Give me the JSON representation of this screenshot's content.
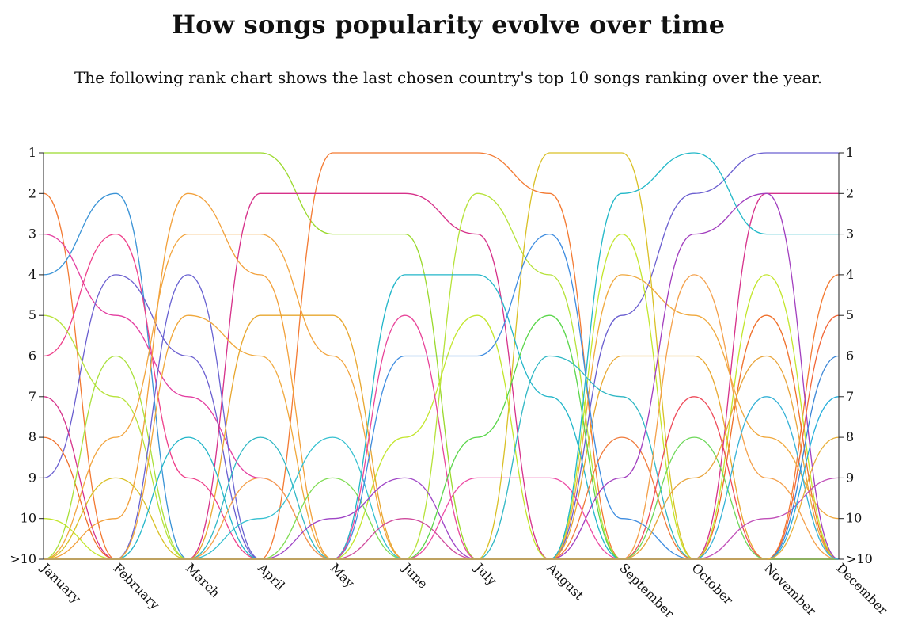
{
  "header": {
    "title": "How songs popularity evolve over time",
    "subtitle": "The following rank chart shows the last chosen country's top 10 songs ranking over the year."
  },
  "chart_data": {
    "type": "line",
    "title": "How songs popularity evolve over time",
    "x": [
      "January",
      "February",
      "March",
      "April",
      "May",
      "June",
      "July",
      "August",
      "September",
      "October",
      "November",
      "December"
    ],
    "y_ticks": [
      "1",
      "2",
      "3",
      "4",
      "5",
      "6",
      "7",
      "8",
      "9",
      "10",
      ">10"
    ],
    "y_direction": "rank (1 at top, >10 at bottom)",
    "off_chart_value": 11,
    "grid": false,
    "legend": "none",
    "series": [
      {
        "color": "#9ad92c",
        "values": [
          1,
          1,
          1,
          1,
          3,
          3,
          11,
          11,
          11,
          11,
          11,
          11
        ]
      },
      {
        "color": "#f37a32",
        "values": [
          2,
          11,
          11,
          11,
          1,
          1,
          1,
          2,
          11,
          11,
          11,
          4
        ]
      },
      {
        "color": "#3a93d6",
        "values": [
          4,
          2,
          11,
          11,
          11,
          11,
          11,
          11,
          11,
          11,
          11,
          11
        ]
      },
      {
        "color": "#e33da0",
        "values": [
          3,
          5,
          7,
          9,
          11,
          11,
          11,
          11,
          11,
          11,
          11,
          11
        ]
      },
      {
        "color": "#ee3f8a",
        "values": [
          6,
          3,
          9,
          11,
          11,
          11,
          11,
          11,
          11,
          11,
          11,
          11
        ]
      },
      {
        "color": "#6b5fd0",
        "values": [
          9,
          4,
          6,
          11,
          11,
          11,
          11,
          11,
          5,
          2,
          1,
          1
        ]
      },
      {
        "color": "#d6318a",
        "values": [
          7,
          11,
          11,
          2,
          2,
          2,
          3,
          11,
          11,
          11,
          2,
          2
        ]
      },
      {
        "color": "#b6e23a",
        "values": [
          5,
          7,
          11,
          11,
          11,
          11,
          2,
          4,
          11,
          11,
          11,
          11
        ]
      },
      {
        "color": "#ef6f2a",
        "values": [
          8,
          11,
          11,
          11,
          11,
          11,
          11,
          11,
          11,
          11,
          5,
          11
        ]
      },
      {
        "color": "#c3e62e",
        "values": [
          10,
          11,
          11,
          11,
          11,
          8,
          5,
          11,
          3,
          11,
          4,
          11
        ]
      },
      {
        "color": "#f2a03a",
        "values": [
          11,
          10,
          2,
          4,
          11,
          11,
          11,
          11,
          11,
          11,
          11,
          11
        ]
      },
      {
        "color": "#a9e03a",
        "values": [
          11,
          6,
          11,
          11,
          11,
          11,
          11,
          11,
          11,
          11,
          11,
          11
        ]
      },
      {
        "color": "#f2a43d",
        "values": [
          11,
          8,
          3,
          3,
          6,
          11,
          11,
          11,
          11,
          11,
          11,
          11
        ]
      },
      {
        "color": "#d9c026",
        "values": [
          11,
          9,
          11,
          11,
          11,
          11,
          11,
          1,
          1,
          11,
          11,
          11
        ]
      },
      {
        "color": "#6a63d2",
        "values": [
          11,
          11,
          4,
          11,
          11,
          11,
          11,
          11,
          11,
          11,
          11,
          11
        ]
      },
      {
        "color": "#f0a83c",
        "values": [
          11,
          11,
          5,
          6,
          11,
          11,
          11,
          11,
          4,
          5,
          8,
          10
        ]
      },
      {
        "color": "#22b6c9",
        "values": [
          11,
          11,
          8,
          11,
          11,
          4,
          4,
          7,
          11,
          11,
          11,
          11
        ]
      },
      {
        "color": "#e8a72f",
        "values": [
          11,
          11,
          11,
          5,
          5,
          11,
          11,
          11,
          6,
          6,
          11,
          11
        ]
      },
      {
        "color": "#2fb7c4",
        "values": [
          11,
          11,
          11,
          8,
          11,
          11,
          11,
          6,
          7,
          11,
          11,
          11
        ]
      },
      {
        "color": "#f4a04a",
        "values": [
          11,
          11,
          11,
          9,
          11,
          11,
          11,
          11,
          11,
          4,
          9,
          11
        ]
      },
      {
        "color": "#35c0d0",
        "values": [
          11,
          11,
          11,
          10,
          8,
          11,
          11,
          11,
          11,
          11,
          11,
          11
        ]
      },
      {
        "color": "#7fdc53",
        "values": [
          11,
          11,
          11,
          11,
          9,
          11,
          11,
          11,
          11,
          11,
          11,
          11
        ]
      },
      {
        "color": "#9f45c6",
        "values": [
          11,
          11,
          11,
          11,
          10,
          9,
          11,
          11,
          11,
          11,
          11,
          11
        ]
      },
      {
        "color": "#3f8de0",
        "values": [
          11,
          11,
          11,
          11,
          11,
          6,
          6,
          3,
          10,
          11,
          11,
          11
        ]
      },
      {
        "color": "#e8469a",
        "values": [
          11,
          11,
          11,
          11,
          11,
          5,
          11,
          11,
          11,
          11,
          11,
          11
        ]
      },
      {
        "color": "#cf4a9c",
        "values": [
          11,
          11,
          11,
          11,
          11,
          10,
          11,
          11,
          11,
          11,
          11,
          11
        ]
      },
      {
        "color": "#5ad64a",
        "values": [
          11,
          11,
          11,
          11,
          11,
          11,
          8,
          5,
          11,
          11,
          11,
          11
        ]
      },
      {
        "color": "#ec4aa4",
        "values": [
          11,
          11,
          11,
          11,
          11,
          11,
          9,
          9,
          11,
          11,
          11,
          11
        ]
      },
      {
        "color": "#22b8c8",
        "values": [
          11,
          11,
          11,
          11,
          11,
          11,
          11,
          11,
          2,
          1,
          3,
          3
        ]
      },
      {
        "color": "#f07a3a",
        "values": [
          11,
          11,
          11,
          11,
          11,
          11,
          11,
          11,
          8,
          11,
          11,
          11
        ]
      },
      {
        "color": "#a23fbf",
        "values": [
          11,
          11,
          11,
          11,
          11,
          11,
          11,
          11,
          9,
          3,
          2,
          11
        ]
      },
      {
        "color": "#ee4b5a",
        "values": [
          11,
          11,
          11,
          11,
          11,
          11,
          11,
          11,
          11,
          7,
          11,
          11
        ]
      },
      {
        "color": "#6ed85a",
        "values": [
          11,
          11,
          11,
          11,
          11,
          11,
          11,
          11,
          11,
          8,
          11,
          11
        ]
      },
      {
        "color": "#e8a43a",
        "values": [
          11,
          11,
          11,
          11,
          11,
          11,
          11,
          11,
          11,
          9,
          6,
          11
        ]
      },
      {
        "color": "#36b2d6",
        "values": [
          11,
          11,
          11,
          11,
          11,
          11,
          11,
          11,
          11,
          11,
          7,
          11
        ]
      },
      {
        "color": "#c04fb8",
        "values": [
          11,
          11,
          11,
          11,
          11,
          11,
          11,
          11,
          11,
          11,
          10,
          9
        ]
      },
      {
        "color": "#f2683a",
        "values": [
          11,
          11,
          11,
          11,
          11,
          11,
          11,
          11,
          11,
          11,
          11,
          5
        ]
      },
      {
        "color": "#3b86d6",
        "values": [
          11,
          11,
          11,
          11,
          11,
          11,
          11,
          11,
          11,
          11,
          11,
          6
        ]
      },
      {
        "color": "#25aedb",
        "values": [
          11,
          11,
          11,
          11,
          11,
          11,
          11,
          11,
          11,
          11,
          11,
          7
        ]
      },
      {
        "color": "#e8b03a",
        "values": [
          11,
          11,
          11,
          11,
          11,
          11,
          11,
          11,
          11,
          11,
          11,
          8
        ]
      }
    ]
  }
}
